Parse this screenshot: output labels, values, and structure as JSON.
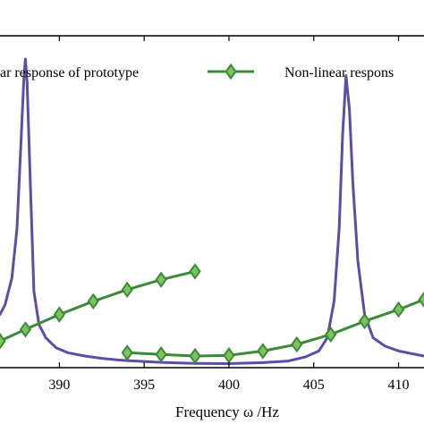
{
  "chart_data": {
    "type": "line",
    "xlabel": "Frequency ω /Hz",
    "ylabel": "",
    "title": "",
    "xlim": [
      386.5,
      411.5
    ],
    "ylim": [
      0,
      1
    ],
    "x_ticks": [
      390,
      395,
      400,
      405,
      410
    ],
    "x_tick_labels": [
      "390",
      "395",
      "400",
      "405",
      "410"
    ],
    "grid": false,
    "legend_position": "top",
    "legend": [
      {
        "label": "ar response of prototype",
        "color": "#5b4ea6",
        "marker": "none"
      },
      {
        "label": "Non-linear respons",
        "color": "#3a8a3a",
        "marker": "diamond"
      }
    ],
    "series": [
      {
        "name": "ar response of prototype",
        "color": "#5b4ea6",
        "marker": "none",
        "x": [
          386.5,
          386.8,
          387.2,
          387.5,
          387.7,
          387.9,
          388.0,
          388.1,
          388.3,
          388.5,
          388.8,
          389.2,
          389.8,
          390.5,
          391.5,
          392.5,
          393.5,
          394.5,
          396.0,
          398.0,
          400.0,
          402.0,
          403.5,
          404.5,
          405.3,
          405.8,
          406.2,
          406.5,
          406.7,
          406.9,
          407.1,
          407.3,
          407.6,
          408.0,
          408.5,
          409.2,
          410.0,
          411.0,
          411.5
        ],
        "y": [
          0.16,
          0.19,
          0.27,
          0.42,
          0.64,
          0.86,
          0.93,
          0.86,
          0.54,
          0.23,
          0.13,
          0.09,
          0.06,
          0.045,
          0.035,
          0.028,
          0.023,
          0.02,
          0.016,
          0.013,
          0.012,
          0.015,
          0.02,
          0.032,
          0.05,
          0.09,
          0.2,
          0.42,
          0.7,
          0.88,
          0.78,
          0.56,
          0.32,
          0.16,
          0.09,
          0.065,
          0.05,
          0.04,
          0.035
        ]
      },
      {
        "name": "Non-linear respons",
        "color": "#3a8a3a",
        "marker": "diamond",
        "segments": [
          {
            "x": [
              386.5,
              388.0,
              390.0,
              392.0,
              394.0,
              396.0,
              398.0
            ],
            "y": [
              0.08,
              0.115,
              0.16,
              0.2,
              0.235,
              0.265,
              0.29
            ]
          },
          {
            "x": [
              394.0,
              396.0,
              398.0,
              400.0,
              402.0,
              404.0,
              406.0,
              408.0,
              410.0,
              411.5
            ],
            "y": [
              0.045,
              0.04,
              0.035,
              0.037,
              0.05,
              0.07,
              0.1,
              0.14,
              0.175,
              0.205
            ]
          }
        ]
      }
    ]
  }
}
